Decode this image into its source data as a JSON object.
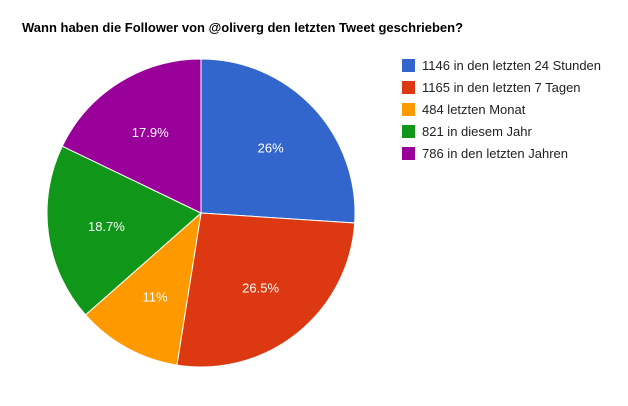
{
  "chart_data": {
    "type": "pie",
    "title": "Wann haben die Follower von @oliverg den letzten Tweet geschrieben?",
    "legend_position": "right",
    "slices": [
      {
        "label": "1146 in den letzten 24 Stunden",
        "value": 1146,
        "percent_label": "26%",
        "color": "#3366cc"
      },
      {
        "label": "1165 in den letzten 7 Tagen",
        "value": 1165,
        "percent_label": "26.5%",
        "color": "#dc3912"
      },
      {
        "label": "484 letzten Monat",
        "value": 484,
        "percent_label": "11%",
        "color": "#ff9900"
      },
      {
        "label": "821 in diesem Jahr",
        "value": 821,
        "percent_label": "18.7%",
        "color": "#109618"
      },
      {
        "label": "786 in den letzten Jahren",
        "value": 786,
        "percent_label": "17.9%",
        "color": "#990099"
      }
    ]
  }
}
